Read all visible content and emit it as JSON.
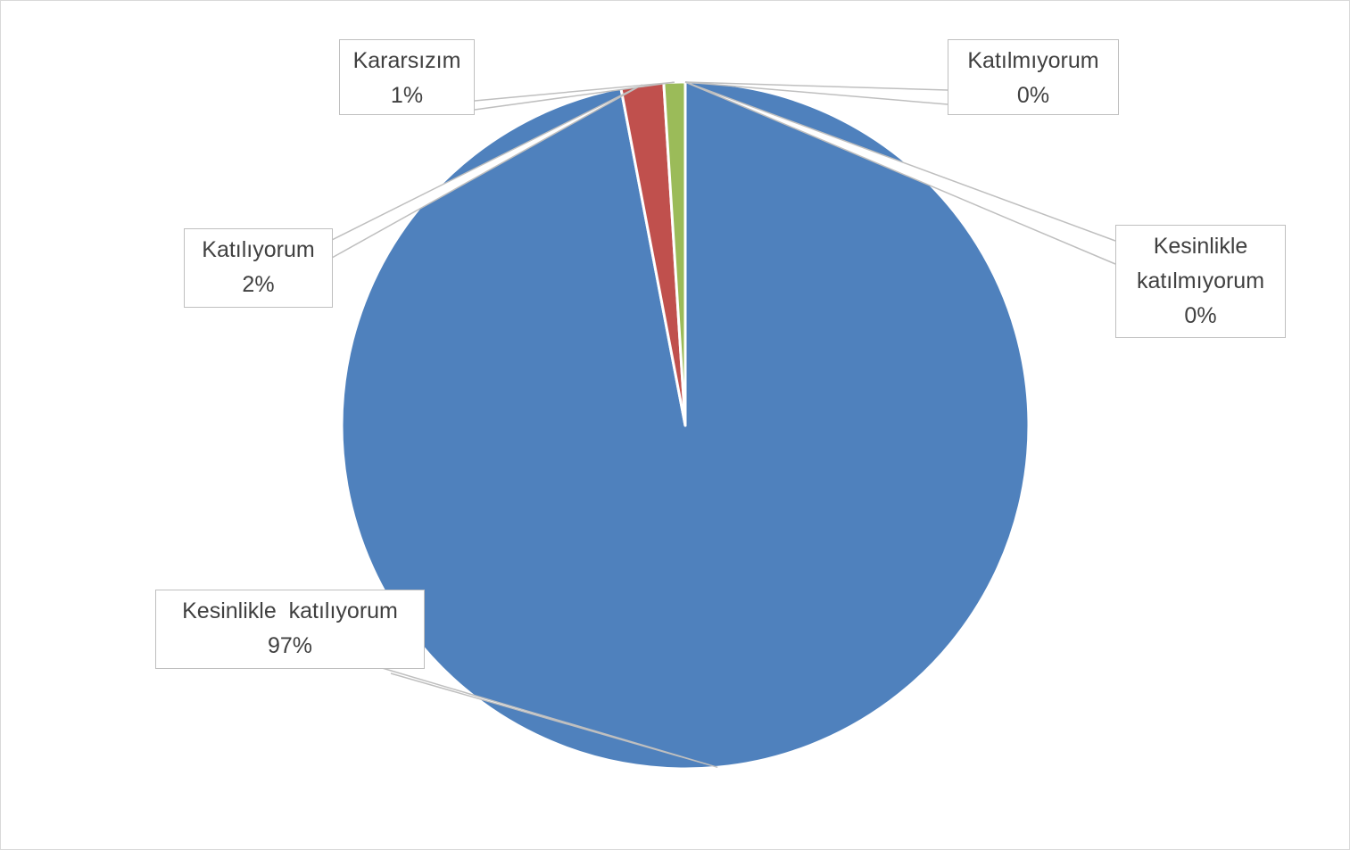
{
  "chart_data": {
    "type": "pie",
    "title": "",
    "start_angle_deg": 0,
    "direction": "clockwise",
    "slices": [
      {
        "label": "Katılmıyorum",
        "value": 0.0,
        "percent_label": "0%",
        "color": "#f79646"
      },
      {
        "label": "Kesinlikle katılmıyorum",
        "value": 0.0,
        "percent_label": "0%",
        "color": "#8064a2"
      },
      {
        "label": "Kesinlikle  katılıyorum",
        "value": 97.0,
        "percent_label": "97%",
        "color": "#4f81bd"
      },
      {
        "label": "Katılıyorum",
        "value": 2.0,
        "percent_label": "2%",
        "color": "#c0504d"
      },
      {
        "label": "Kararsızım",
        "value": 1.0,
        "percent_label": "1%",
        "color": "#9bbb59"
      }
    ],
    "label_lines": [
      "Kesinlikle",
      "katılmıyorum"
    ]
  }
}
